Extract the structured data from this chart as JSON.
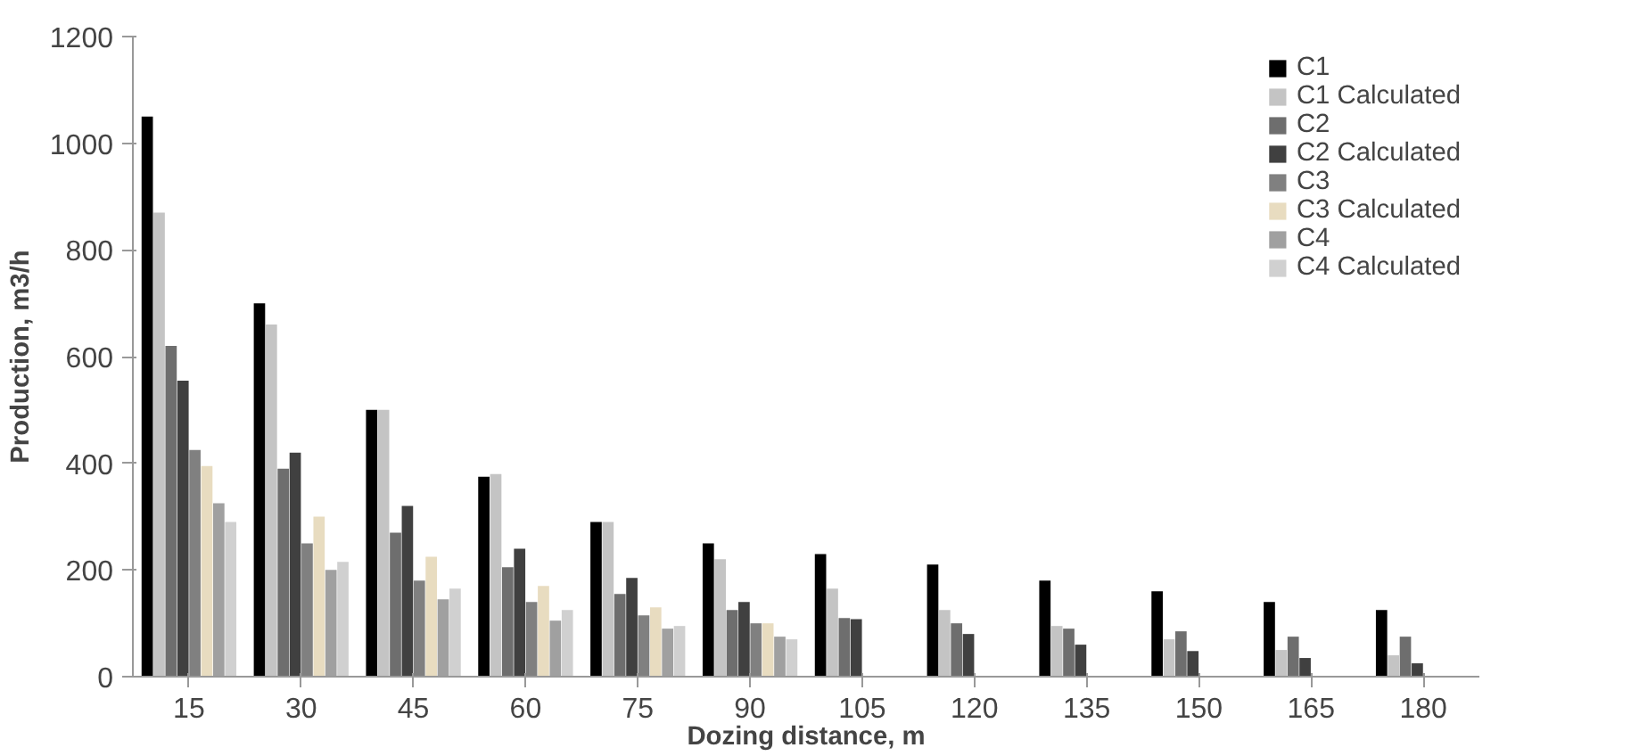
{
  "chart_data": {
    "type": "bar",
    "xlabel": "Dozing distance, m",
    "ylabel": "Production, m3/h",
    "categories": [
      "15",
      "30",
      "45",
      "60",
      "75",
      "90",
      "105",
      "120",
      "135",
      "150",
      "165",
      "180"
    ],
    "ylim": [
      0,
      1200
    ],
    "yticks": [
      0,
      200,
      400,
      600,
      800,
      1000,
      1200
    ],
    "grid": false,
    "legend": "top right",
    "series": [
      {
        "name": "C1",
        "color": "#000000",
        "values": [
          1050,
          700,
          500,
          375,
          290,
          250,
          230,
          210,
          180,
          160,
          140,
          125
        ]
      },
      {
        "name": "C1 Calculated",
        "color": "#c4c4c4",
        "values": [
          870,
          660,
          500,
          380,
          290,
          220,
          165,
          125,
          95,
          70,
          50,
          40
        ]
      },
      {
        "name": "C2",
        "color": "#6e6e6e",
        "values": [
          620,
          390,
          270,
          205,
          155,
          125,
          110,
          100,
          90,
          85,
          75,
          75
        ]
      },
      {
        "name": "C2 Calculated",
        "color": "#404040",
        "values": [
          555,
          420,
          320,
          240,
          185,
          140,
          108,
          80,
          60,
          48,
          35,
          25
        ]
      },
      {
        "name": "C3",
        "color": "#808080",
        "values": [
          425,
          250,
          180,
          140,
          115,
          100,
          null,
          null,
          null,
          null,
          null,
          null
        ]
      },
      {
        "name": "C3 Calculated",
        "color": "#e8dcc0",
        "values": [
          395,
          300,
          225,
          170,
          130,
          100,
          null,
          null,
          null,
          null,
          null,
          null
        ]
      },
      {
        "name": "C4",
        "color": "#a0a0a0",
        "values": [
          325,
          200,
          145,
          105,
          90,
          75,
          null,
          null,
          null,
          null,
          null,
          null
        ]
      },
      {
        "name": "C4 Calculated",
        "color": "#d0d0d0",
        "values": [
          290,
          215,
          165,
          125,
          95,
          70,
          null,
          null,
          null,
          null,
          null,
          null
        ]
      }
    ]
  }
}
